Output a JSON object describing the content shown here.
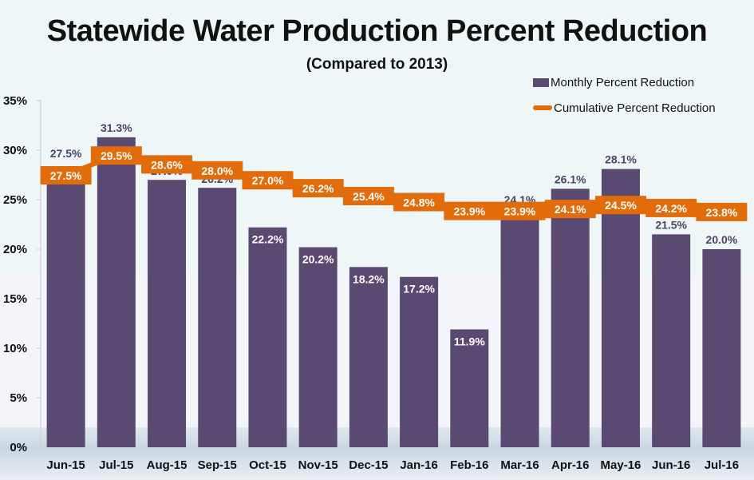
{
  "chart_data": {
    "type": "bar",
    "title": "Statewide Water Production Percent Reduction",
    "subtitle": "(Compared to 2013)",
    "xlabel": "",
    "ylabel": "",
    "ylim": [
      0,
      35
    ],
    "yticks": [
      0,
      5,
      10,
      15,
      20,
      25,
      30,
      35
    ],
    "ytick_labels": [
      "0%",
      "5%",
      "10%",
      "15%",
      "20%",
      "25%",
      "30%",
      "35%"
    ],
    "grid": false,
    "legend_position": "top-right",
    "categories": [
      "Jun-15",
      "Jul-15",
      "Aug-15",
      "Sep-15",
      "Oct-15",
      "Nov-15",
      "Dec-15",
      "Jan-16",
      "Feb-16",
      "Mar-16",
      "Apr-16",
      "May-16",
      "Jun-16",
      "Jul-16"
    ],
    "series": [
      {
        "name": "Monthly Percent Reduction",
        "type": "bar",
        "color": "#5a4a72",
        "values": [
          27.5,
          31.3,
          27.0,
          26.2,
          22.2,
          20.2,
          18.2,
          17.2,
          11.9,
          24.1,
          26.1,
          28.1,
          21.5,
          20.0
        ],
        "labels": [
          "27.5%",
          "31.3%",
          "27.0%",
          "26.2%",
          "22.2%",
          "20.2%",
          "18.2%",
          "17.2%",
          "11.9%",
          "24.1%",
          "26.1%",
          "28.1%",
          "21.5%",
          "20.0%"
        ]
      },
      {
        "name": "Cumulative Percent Reduction",
        "type": "line",
        "color": "#e36c0a",
        "values": [
          27.5,
          29.5,
          28.6,
          28.0,
          27.0,
          26.2,
          25.4,
          24.8,
          23.9,
          23.9,
          24.1,
          24.5,
          24.2,
          23.8
        ],
        "labels": [
          "27.5%",
          "29.5%",
          "28.6%",
          "28.0%",
          "27.0%",
          "26.2%",
          "25.4%",
          "24.8%",
          "23.9%",
          "23.9%",
          "24.1%",
          "24.5%",
          "24.2%",
          "23.8%"
        ]
      }
    ]
  },
  "colors": {
    "bar": "#5a4a72",
    "line": "#e36c0a",
    "bar_label_outside": "#4f4466",
    "bar_label_inside": "#ffffff"
  }
}
